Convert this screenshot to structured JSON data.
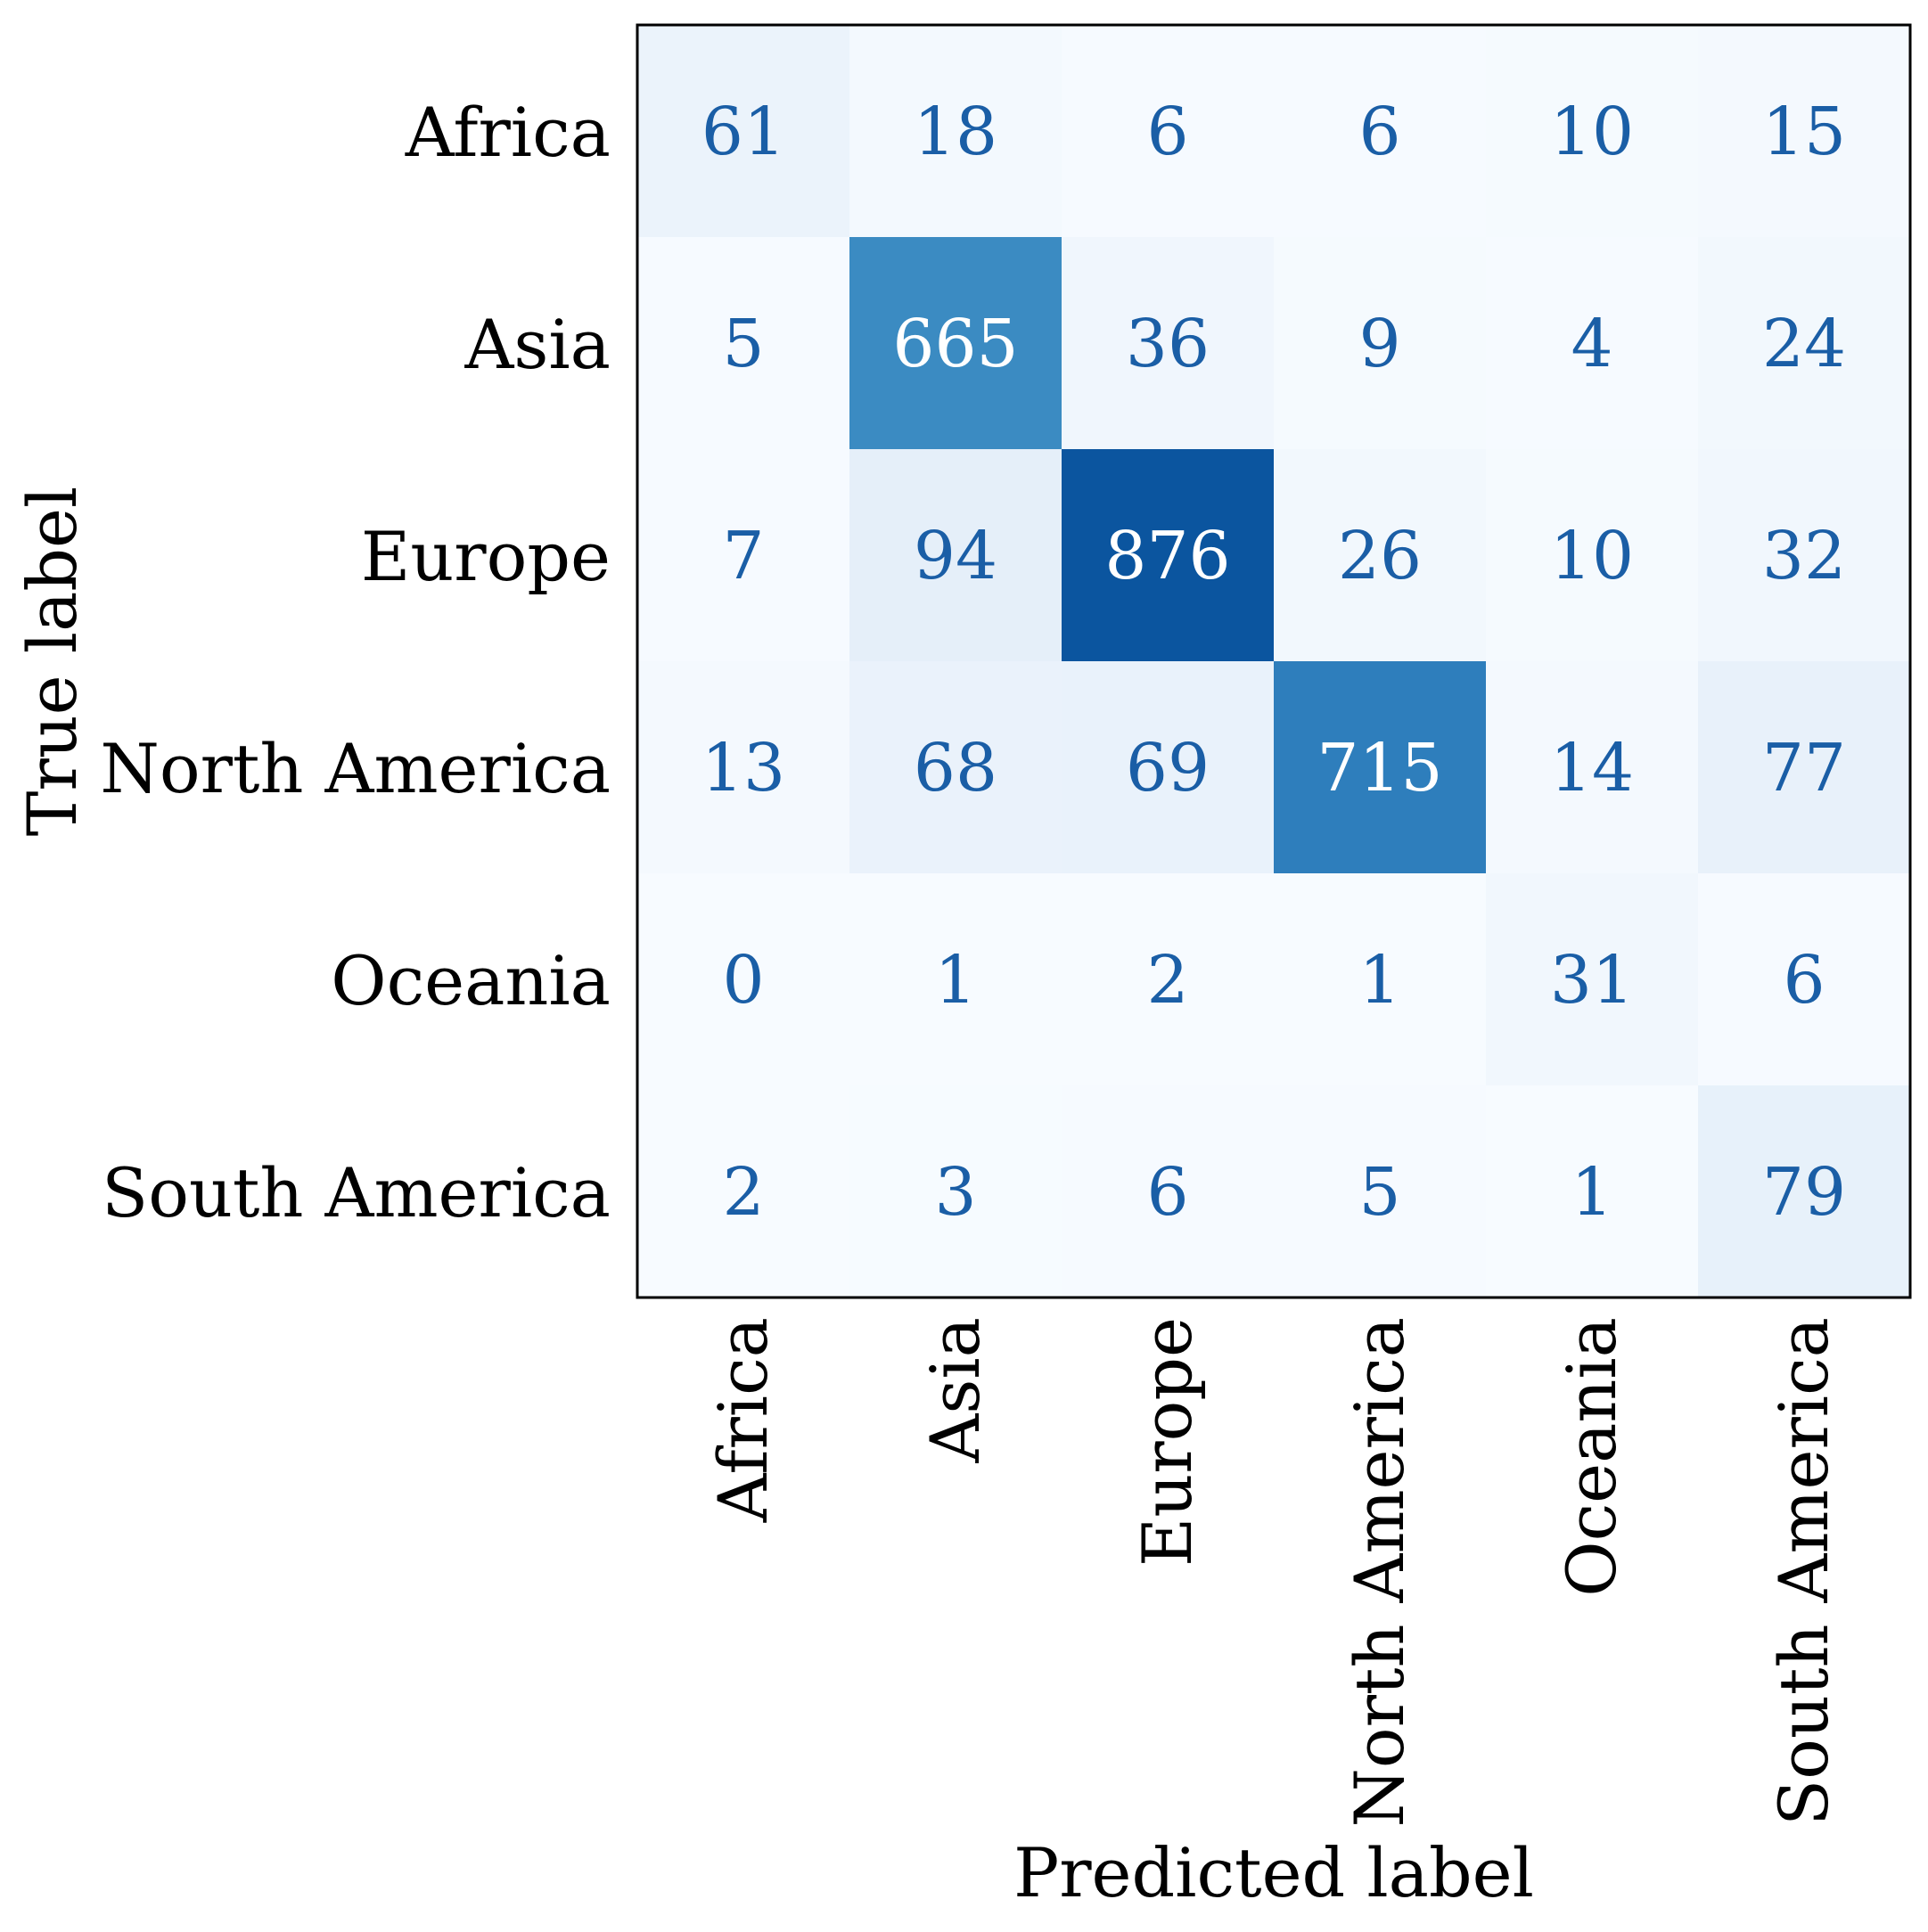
{
  "chart_data": {
    "type": "heatmap",
    "title": "",
    "xlabel": "Predicted label",
    "ylabel": "True label",
    "x_categories": [
      "Africa",
      "Asia",
      "Europe",
      "North America",
      "Oceania",
      "South America"
    ],
    "y_categories": [
      "Africa",
      "Asia",
      "Europe",
      "North America",
      "Oceania",
      "South America"
    ],
    "values": [
      [
        61,
        18,
        6,
        6,
        10,
        15
      ],
      [
        5,
        665,
        36,
        9,
        4,
        24
      ],
      [
        7,
        94,
        876,
        26,
        10,
        32
      ],
      [
        13,
        68,
        69,
        715,
        14,
        77
      ],
      [
        0,
        1,
        2,
        1,
        31,
        6
      ],
      [
        2,
        3,
        6,
        5,
        1,
        79
      ]
    ],
    "colormap": "Blues",
    "value_range": [
      0,
      876
    ],
    "text_color_light": "#ffffff",
    "text_color_dark": "#1a5ea6",
    "grid": false,
    "legend": "none"
  }
}
